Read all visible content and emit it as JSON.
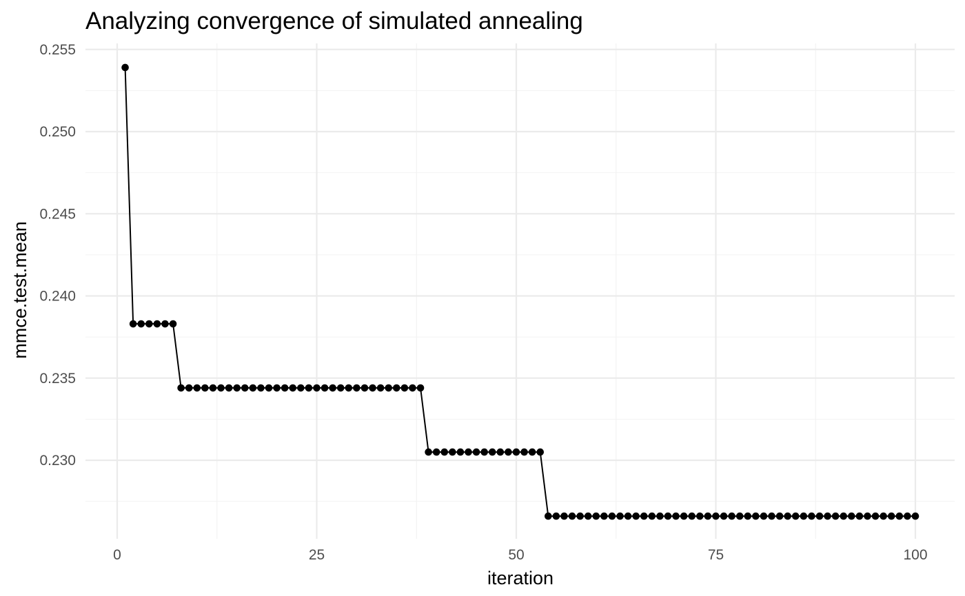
{
  "chart_data": {
    "type": "line",
    "title": "Analyzing convergence of simulated annealing",
    "xlabel": "iteration",
    "ylabel": "mmce.test.mean",
    "xlim": [
      -3,
      102
    ],
    "ylim": [
      0.2254,
      0.2555
    ],
    "x_ticks": [
      0,
      25,
      50,
      75,
      100
    ],
    "x_tick_labels": [
      "0",
      "25",
      "50",
      "75",
      "100"
    ],
    "x_minor_ticks": [
      12.5,
      37.5,
      62.5,
      87.5
    ],
    "y_ticks": [
      0.23,
      0.235,
      0.24,
      0.245,
      0.25,
      0.255
    ],
    "y_tick_labels": [
      "0.230",
      "0.235",
      "0.240",
      "0.245",
      "0.250",
      "0.255"
    ],
    "y_minor_ticks": [
      0.2275,
      0.2325,
      0.2375,
      0.2425,
      0.2475,
      0.2525
    ],
    "grid": true,
    "legend": "none",
    "series_color": "#000000",
    "segments": [
      {
        "from": 1,
        "to": 1,
        "value": 0.2539
      },
      {
        "from": 2,
        "to": 7,
        "value": 0.2383
      },
      {
        "from": 8,
        "to": 38,
        "value": 0.2344
      },
      {
        "from": 39,
        "to": 53,
        "value": 0.2305
      },
      {
        "from": 54,
        "to": 100,
        "value": 0.2266
      }
    ]
  }
}
